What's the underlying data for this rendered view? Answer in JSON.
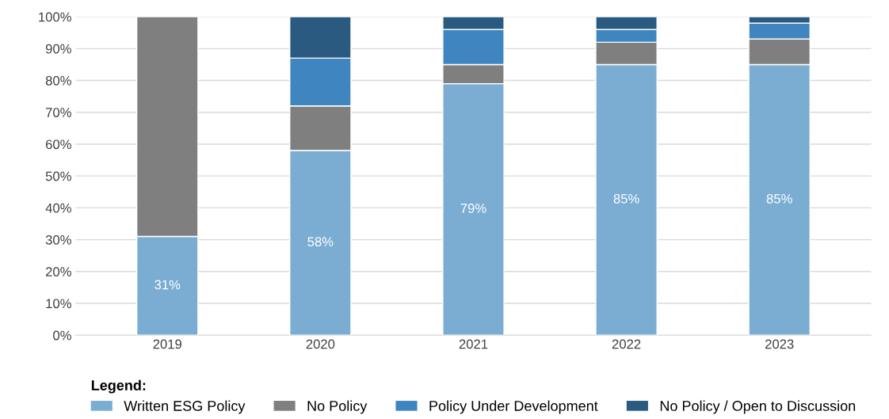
{
  "chart_data": {
    "type": "bar",
    "stacked": true,
    "categories": [
      "2019",
      "2020",
      "2021",
      "2022",
      "2023"
    ],
    "series": [
      {
        "name": "Written ESG Policy",
        "color": "#7badd3",
        "values": [
          31,
          58,
          79,
          85,
          85
        ],
        "value_labels": [
          "31%",
          "58%",
          "79%",
          "85%",
          "85%"
        ]
      },
      {
        "name": "No Policy",
        "color": "#7f7f7f",
        "values": [
          69,
          14,
          6,
          7,
          8
        ]
      },
      {
        "name": "Policy Under Development",
        "color": "#3f86c0",
        "values": [
          null,
          15,
          11,
          4,
          5
        ]
      },
      {
        "name": "No Policy / Open to Discussion",
        "color": "#2a5a80",
        "values": [
          null,
          13,
          4,
          4,
          2
        ]
      }
    ],
    "legend_title": "Legend:",
    "legend": "bottom",
    "ylim": [
      0,
      100
    ],
    "yticks": [
      {
        "value": 0,
        "label": "0%"
      },
      {
        "value": 10,
        "label": "10%"
      },
      {
        "value": 20,
        "label": "20%"
      },
      {
        "value": 30,
        "label": "30%"
      },
      {
        "value": 40,
        "label": "40%"
      },
      {
        "value": 50,
        "label": "50%"
      },
      {
        "value": 60,
        "label": "60%"
      },
      {
        "value": 70,
        "label": "70%"
      },
      {
        "value": 80,
        "label": "80%"
      },
      {
        "value": 90,
        "label": "90%"
      },
      {
        "value": 100,
        "label": "100%"
      }
    ],
    "grid": "y"
  }
}
